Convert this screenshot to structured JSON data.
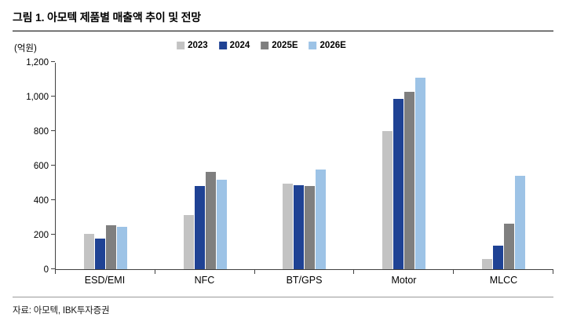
{
  "header": {
    "title": "그림 1. 아모텍 제품별 매출액 추이 및 전망"
  },
  "footer": {
    "source": "자료: 아모텍, IBK투자증권"
  },
  "chart_data": {
    "type": "bar",
    "title": "그림 1. 아모텍 제품별 매출액 추이 및 전망",
    "unit_label": "(억원)",
    "xlabel": "",
    "ylabel": "(억원)",
    "ylim": [
      0,
      1200
    ],
    "grid": false,
    "legend_position": "top-center",
    "categories": [
      "ESD/EMI",
      "NFC",
      "BT/GPS",
      "Motor",
      "MLCC"
    ],
    "series": [
      {
        "name": "2023",
        "color": "#c3c3c3",
        "values": [
          205,
          315,
          495,
          800,
          60
        ]
      },
      {
        "name": "2024",
        "color": "#1f4294",
        "values": [
          175,
          480,
          485,
          985,
          135
        ]
      },
      {
        "name": "2025E",
        "color": "#7f7f7f",
        "values": [
          255,
          565,
          480,
          1025,
          265
        ]
      },
      {
        "name": "2026E",
        "color": "#9dc3e6",
        "values": [
          245,
          520,
          575,
          1110,
          540
        ]
      }
    ],
    "y_ticks": [
      {
        "value": 0,
        "label": "0"
      },
      {
        "value": 200,
        "label": "200"
      },
      {
        "value": 400,
        "label": "400"
      },
      {
        "value": 600,
        "label": "600"
      },
      {
        "value": 800,
        "label": "800"
      },
      {
        "value": 1000,
        "label": "1,000"
      },
      {
        "value": 1200,
        "label": "1,200"
      }
    ]
  }
}
